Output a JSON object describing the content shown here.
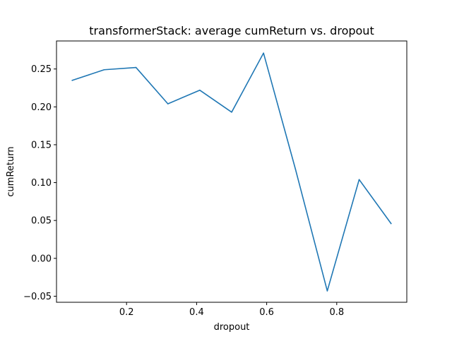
{
  "chart_data": {
    "type": "line",
    "title": "transformerStack: average cumReturn vs. dropout",
    "xlabel": "dropout",
    "ylabel": "cumReturn",
    "xlim": [
      0.0,
      1.0
    ],
    "ylim": [
      -0.058,
      0.287
    ],
    "xticks": [
      0.2,
      0.4,
      0.6,
      0.8
    ],
    "xtick_labels": [
      "0.2",
      "0.4",
      "0.6",
      "0.8"
    ],
    "yticks": [
      -0.05,
      0.0,
      0.05,
      0.1,
      0.15,
      0.2,
      0.25
    ],
    "ytick_labels": [
      "−0.05",
      "0.00",
      "0.05",
      "0.10",
      "0.15",
      "0.20",
      "0.25"
    ],
    "grid": false,
    "series": [
      {
        "color": "#1f77b4",
        "x": [
          0.045,
          0.136,
          0.227,
          0.318,
          0.409,
          0.5,
          0.591,
          0.682,
          0.773,
          0.864,
          0.955
        ],
        "y": [
          0.235,
          0.249,
          0.252,
          0.204,
          0.222,
          0.193,
          0.271,
          0.118,
          -0.043,
          0.104,
          0.046
        ]
      }
    ]
  }
}
